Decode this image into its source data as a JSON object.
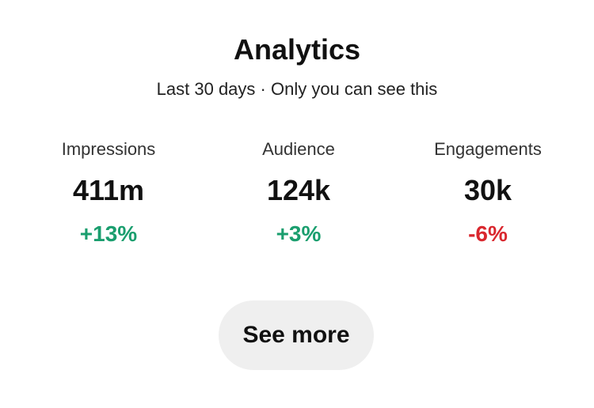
{
  "header": {
    "title": "Analytics",
    "subtitle": "Last 30 days · Only you can see this"
  },
  "stats": [
    {
      "label": "Impressions",
      "value": "411m",
      "change": "+13%",
      "trend": "up"
    },
    {
      "label": "Audience",
      "value": "124k",
      "change": "+3%",
      "trend": "up"
    },
    {
      "label": "Engagements",
      "value": "30k",
      "change": "-6%",
      "trend": "down"
    }
  ],
  "button": "See more"
}
